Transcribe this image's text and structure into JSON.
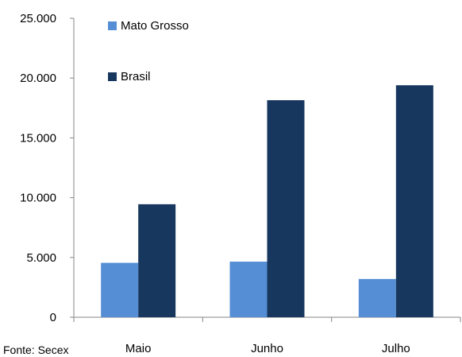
{
  "chart_data": {
    "type": "bar",
    "categories": [
      "Maio",
      "Junho",
      "Julho"
    ],
    "series": [
      {
        "name": "Mato Grosso",
        "values": [
          4550,
          4650,
          3200
        ],
        "color": "#558ED5"
      },
      {
        "name": "Brasil",
        "values": [
          9450,
          18150,
          19400
        ],
        "color": "#17375E"
      }
    ],
    "y_ticks": [
      "0",
      "5.000",
      "10.000",
      "15.000",
      "20.000",
      "25.000"
    ],
    "ylim": [
      0,
      25000
    ],
    "grid": false,
    "legend_position": "top-left"
  },
  "source_note": "Fonte: Secex"
}
